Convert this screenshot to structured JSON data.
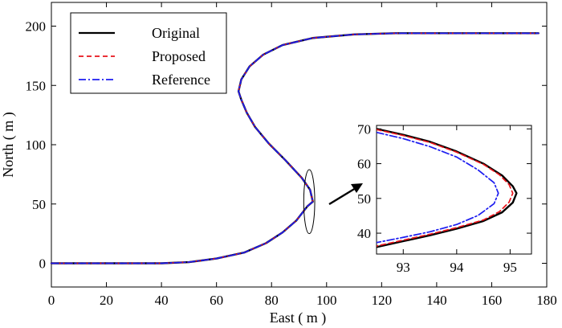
{
  "chart_data": {
    "type": "line",
    "main": {
      "xlabel": "East ( m )",
      "ylabel": "North ( m )",
      "xlim": [
        0,
        180
      ],
      "ylim": [
        -20,
        220
      ],
      "xticks": [
        0,
        20,
        40,
        60,
        80,
        100,
        120,
        140,
        160,
        180
      ],
      "yticks": [
        0,
        50,
        100,
        150,
        200
      ],
      "grid": false,
      "legend_position": "top-left",
      "series": [
        {
          "name": "Original",
          "color": "#000000",
          "style": "solid",
          "points": [
            [
              0,
              0
            ],
            [
              40,
              0
            ],
            [
              50,
              1
            ],
            [
              60,
              4
            ],
            [
              70,
              9
            ],
            [
              78,
              17
            ],
            [
              84,
              26
            ],
            [
              89,
              36
            ],
            [
              93,
              48
            ],
            [
              95,
              52
            ],
            [
              94,
              62
            ],
            [
              91,
              72
            ],
            [
              85,
              87
            ],
            [
              79,
              101
            ],
            [
              74,
              115
            ],
            [
              71,
              127
            ],
            [
              69,
              138
            ],
            [
              68,
              145
            ],
            [
              69,
              155
            ],
            [
              72,
              166
            ],
            [
              77,
              176
            ],
            [
              84,
              184
            ],
            [
              95,
              190
            ],
            [
              110,
              193
            ],
            [
              125,
              194
            ],
            [
              150,
              194
            ],
            [
              177,
              194
            ]
          ]
        },
        {
          "name": "Proposed",
          "color": "#e8141b",
          "style": "dashed",
          "points": [
            [
              0,
              0
            ],
            [
              40,
              0
            ],
            [
              50,
              1
            ],
            [
              60,
              4
            ],
            [
              70,
              9
            ],
            [
              78,
              17
            ],
            [
              84,
              26
            ],
            [
              89,
              36
            ],
            [
              93,
              48
            ],
            [
              95,
              52
            ],
            [
              94,
              62
            ],
            [
              91,
              72
            ],
            [
              85,
              87
            ],
            [
              79,
              101
            ],
            [
              74,
              115
            ],
            [
              71,
              127
            ],
            [
              69,
              138
            ],
            [
              68,
              145
            ],
            [
              69,
              155
            ],
            [
              72,
              166
            ],
            [
              77,
              176
            ],
            [
              84,
              184
            ],
            [
              95,
              190
            ],
            [
              110,
              193
            ],
            [
              125,
              194
            ],
            [
              150,
              194
            ],
            [
              177,
              194
            ]
          ]
        },
        {
          "name": "Reference",
          "color": "#1c1cf0",
          "style": "dashdot",
          "points": [
            [
              0,
              0
            ],
            [
              40,
              0
            ],
            [
              50,
              1
            ],
            [
              60,
              4
            ],
            [
              70,
              9
            ],
            [
              78,
              17
            ],
            [
              84,
              26
            ],
            [
              89,
              36
            ],
            [
              93,
              48
            ],
            [
              95,
              52
            ],
            [
              94,
              62
            ],
            [
              91,
              72
            ],
            [
              85,
              87
            ],
            [
              79,
              101
            ],
            [
              74,
              115
            ],
            [
              71,
              127
            ],
            [
              69,
              138
            ],
            [
              68,
              145
            ],
            [
              69,
              155
            ],
            [
              72,
              166
            ],
            [
              77,
              176
            ],
            [
              84,
              184
            ],
            [
              95,
              190
            ],
            [
              110,
              193
            ],
            [
              125,
              194
            ],
            [
              150,
              194
            ],
            [
              177,
              194
            ]
          ]
        }
      ]
    },
    "inset": {
      "xlim": [
        92.5,
        95.4
      ],
      "ylim": [
        34,
        71
      ],
      "xticks": [
        93,
        94,
        95
      ],
      "yticks": [
        40,
        50,
        60,
        70
      ],
      "series": [
        {
          "name": "Original",
          "color": "#000000",
          "style": "solid",
          "points": [
            [
              92.5,
              70
            ],
            [
              93,
              68.3
            ],
            [
              93.5,
              66.3
            ],
            [
              94,
              63.5
            ],
            [
              94.5,
              60
            ],
            [
              94.85,
              56.6
            ],
            [
              95.05,
              53.5
            ],
            [
              95.12,
              51.5
            ],
            [
              95.05,
              48.8
            ],
            [
              94.85,
              46
            ],
            [
              94.5,
              43.5
            ],
            [
              94,
              41.3
            ],
            [
              93.5,
              39.4
            ],
            [
              93,
              37.7
            ],
            [
              92.5,
              36
            ]
          ]
        },
        {
          "name": "Proposed",
          "color": "#e8141b",
          "style": "dashed",
          "points": [
            [
              92.5,
              69.8
            ],
            [
              93,
              68.1
            ],
            [
              93.5,
              66.1
            ],
            [
              94,
              63.3
            ],
            [
              94.5,
              59.8
            ],
            [
              94.8,
              56.8
            ],
            [
              94.98,
              54
            ],
            [
              95.05,
              51.5
            ],
            [
              94.98,
              48.9
            ],
            [
              94.8,
              46.2
            ],
            [
              94.5,
              43.8
            ],
            [
              94,
              41.6
            ],
            [
              93.5,
              39.7
            ],
            [
              93,
              38
            ],
            [
              92.5,
              36.3
            ]
          ]
        },
        {
          "name": "Reference",
          "color": "#1c1cf0",
          "style": "dashdot",
          "points": [
            [
              92.5,
              69
            ],
            [
              93,
              67.2
            ],
            [
              93.5,
              64.9
            ],
            [
              94,
              61.9
            ],
            [
              94.4,
              58.2
            ],
            [
              94.7,
              54.5
            ],
            [
              94.78,
              51.5
            ],
            [
              94.7,
              48.5
            ],
            [
              94.4,
              45.1
            ],
            [
              94,
              42.5
            ],
            [
              93.5,
              40.4
            ],
            [
              93,
              38.8
            ],
            [
              92.5,
              37.3
            ]
          ]
        }
      ]
    },
    "annotation": {
      "ellipse_center": [
        93.7,
        52
      ],
      "ellipse_radius": [
        2,
        27
      ]
    }
  }
}
